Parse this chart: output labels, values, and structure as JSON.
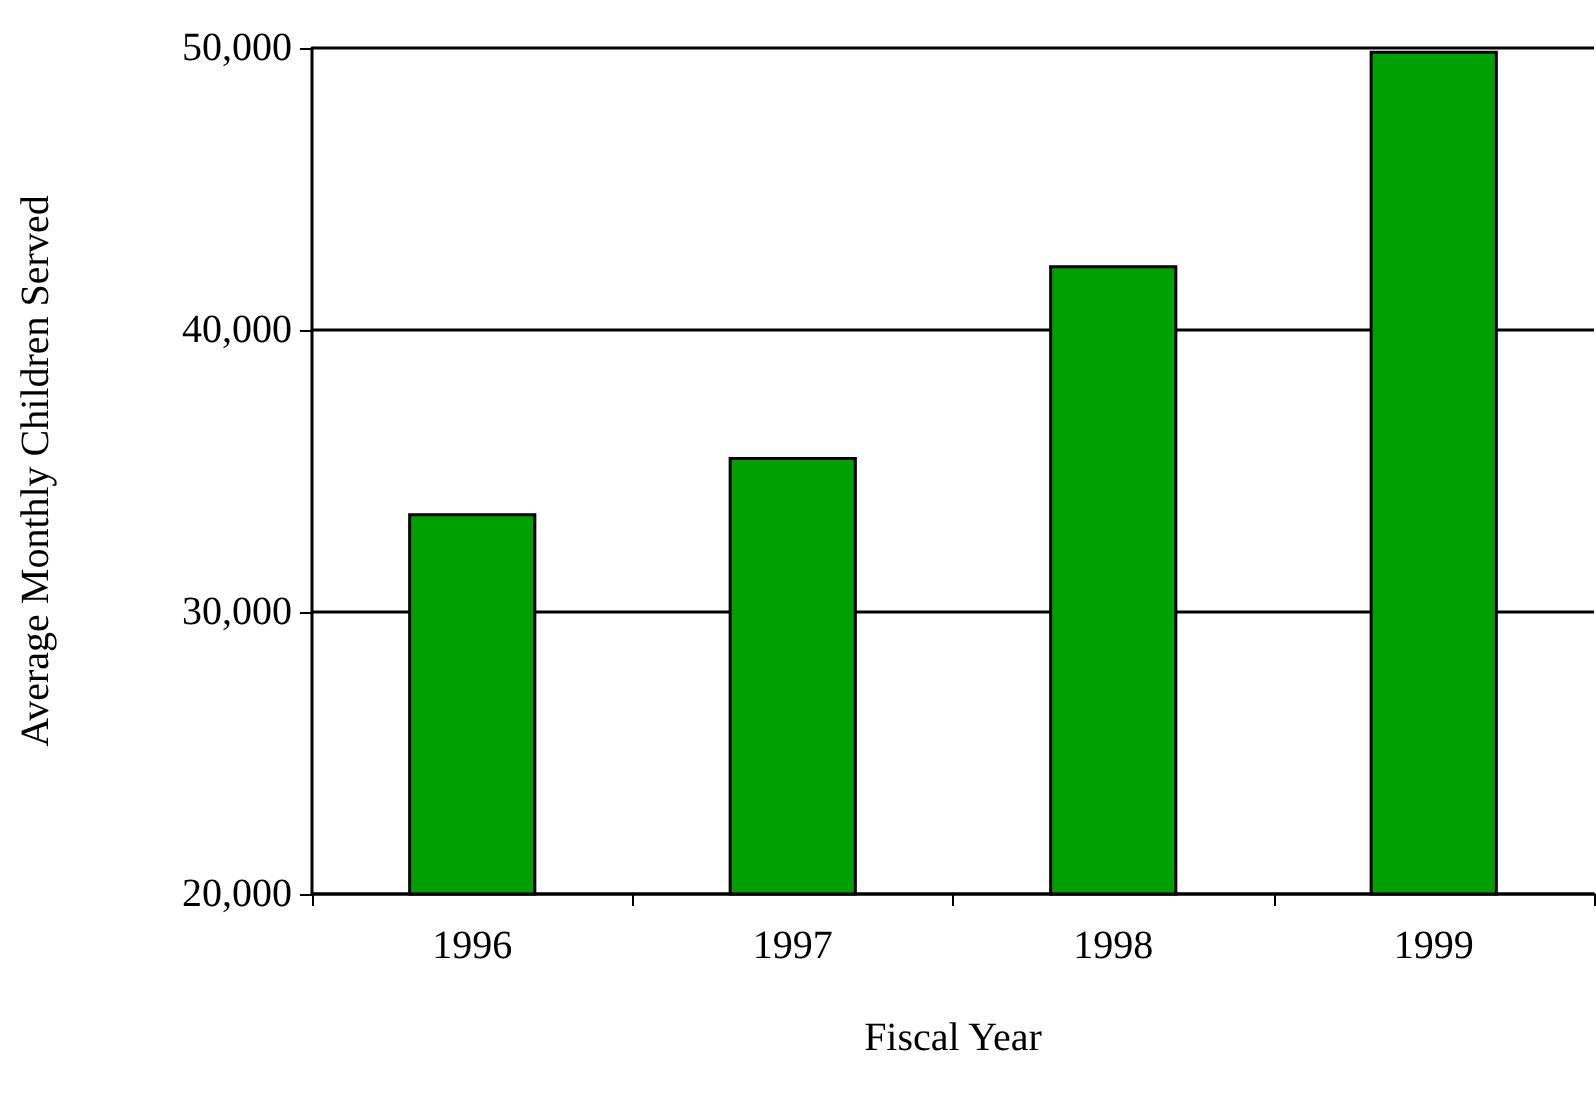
{
  "chart_data": {
    "type": "bar",
    "xlabel": "Fiscal Year",
    "ylabel": "Average Monthly Children Served",
    "categories": [
      "1996",
      "1997",
      "1998",
      "1999"
    ],
    "values": [
      33500,
      35500,
      42300,
      49900
    ],
    "color": "#00a000",
    "ylim": [
      20000,
      50000
    ],
    "yticks": [
      {
        "value": 20000,
        "label": "20,000"
      },
      {
        "value": 30000,
        "label": "30,000"
      },
      {
        "value": 40000,
        "label": "40,000"
      },
      {
        "value": 50000,
        "label": "50,000"
      }
    ],
    "grid": "y"
  }
}
